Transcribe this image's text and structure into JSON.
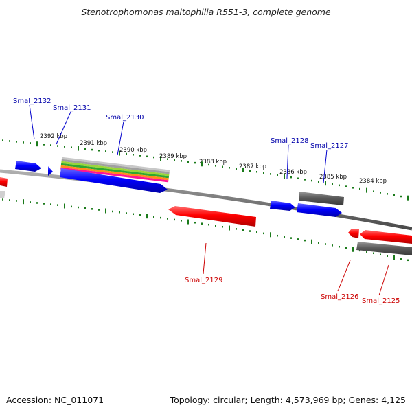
{
  "title": "Stenotrophomonas maltophilia R551-3, complete genome",
  "footer": {
    "accession": "Accession: NC_011071",
    "summary": "Topology: circular; Length: 4,573,969 bp; Genes: 4,125"
  },
  "colors": {
    "forward": "#0000ff",
    "reverse": "#ff0000",
    "other": "#666666",
    "ticks": "#1a7a1a",
    "backbone": "#808080"
  },
  "kbp_labels": [
    "2392 kbp",
    "2391 kbp",
    "2390 kbp",
    "2389 kbp",
    "2388 kbp",
    "2387 kbp",
    "2386 kbp",
    "2385 kbp",
    "2384 kbp"
  ],
  "genes": {
    "smal_2132": "Smal_2132",
    "smal_2131": "Smal_2131",
    "smal_2130": "Smal_2130",
    "smal_2128": "Smal_2128",
    "smal_2127": "Smal_2127",
    "smal_2129": "Smal_2129",
    "smal_2126": "Smal_2126",
    "smal_2125": "Smal_2125"
  }
}
